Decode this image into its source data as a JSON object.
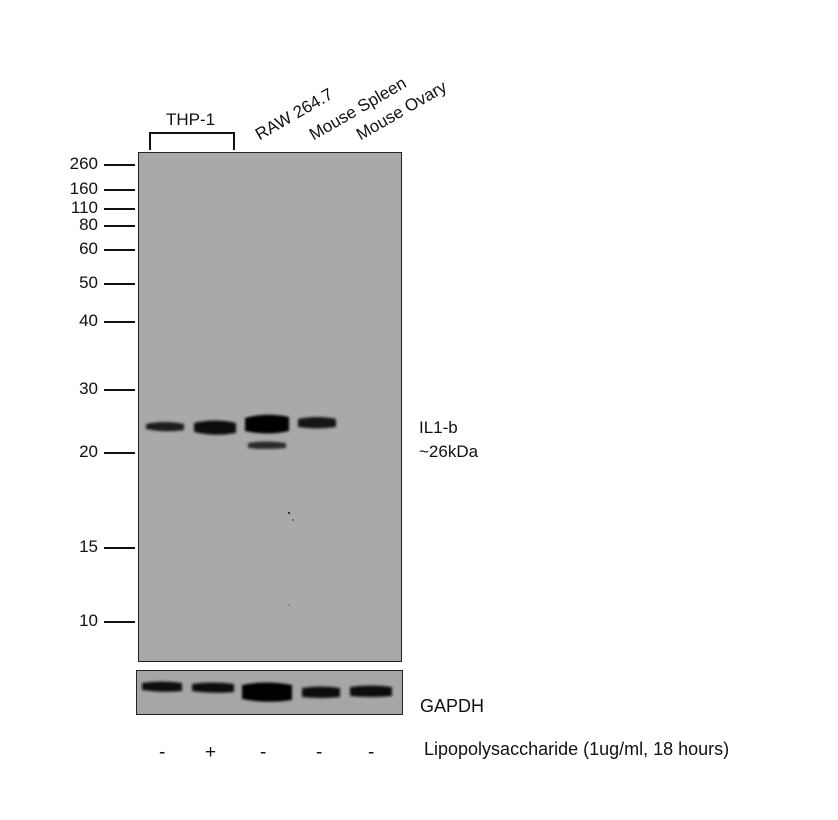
{
  "lanes": {
    "group_label": "THP-1",
    "labels": [
      "RAW 264.7",
      "Mouse Spleen",
      "Mouse Ovary"
    ]
  },
  "markers": [
    "260",
    "160",
    "110",
    "80",
    "60",
    "50",
    "40",
    "30",
    "20",
    "15",
    "10"
  ],
  "main_blot": {
    "band_label_line1": "IL1-b",
    "band_label_line2": "~26kDa"
  },
  "loading_control": {
    "label": "GAPDH"
  },
  "treatment": {
    "signs": [
      "-",
      "+",
      "-",
      "-",
      "-"
    ],
    "label": "Lipopolysaccharide (1ug/ml, 18 hours)"
  }
}
